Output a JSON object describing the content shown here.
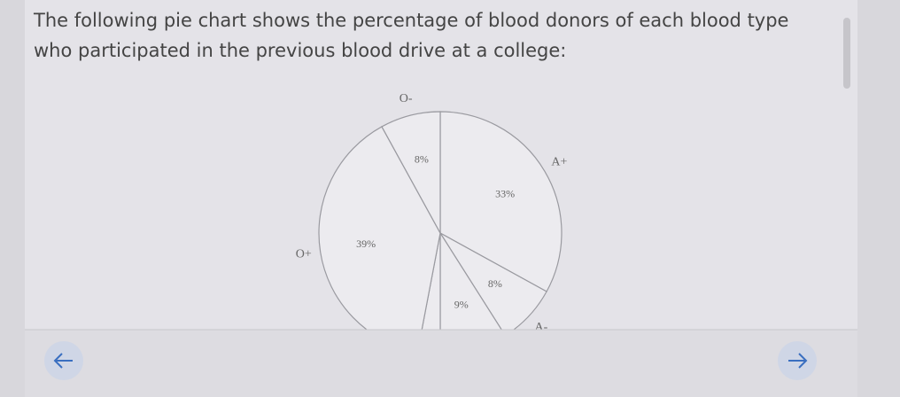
{
  "question": "The following pie chart shows the percentage of blood donors of each blood type who participated in the previous blood drive at a college:",
  "chart_data": {
    "type": "pie",
    "categories": [
      "A+",
      "A-",
      null,
      null,
      "O+",
      "O-"
    ],
    "values": [
      33,
      8,
      9,
      3,
      39,
      8
    ],
    "value_labels": [
      "33%",
      "8%",
      "9%",
      null,
      "39%",
      "8%"
    ],
    "color": "#ecebef"
  }
}
